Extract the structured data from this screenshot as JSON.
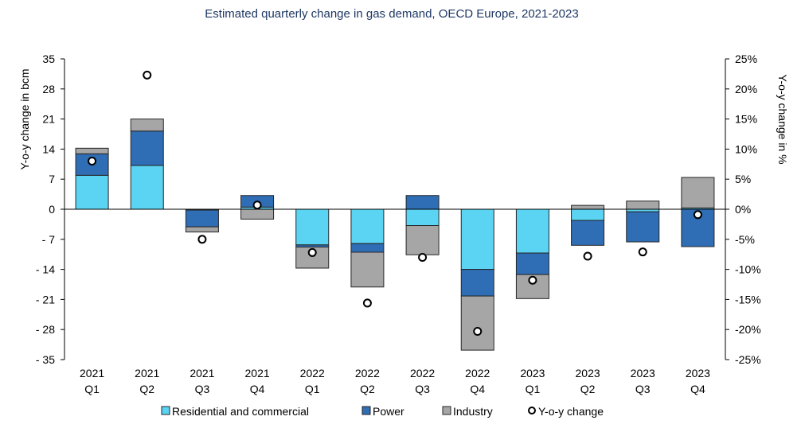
{
  "chart_data": {
    "type": "bar",
    "stacked": true,
    "title": "Estimated quarterly change in gas demand, OECD Europe, 2021-2023",
    "ylabel": "Y-o-y change in bcm",
    "y2label": "Y-o-y change in %",
    "ylim": [
      -35,
      35
    ],
    "y2lim": [
      -25,
      25
    ],
    "yticks": [
      "35",
      "28",
      "21",
      "14",
      "7",
      "0",
      "- 7",
      "- 14",
      "- 21",
      "- 28",
      "- 35"
    ],
    "y2ticks": [
      "25%",
      "20%",
      "15%",
      "10%",
      "5%",
      "0%",
      "-5%",
      "-10%",
      "-15%",
      "-20%",
      "-25%"
    ],
    "categories": [
      [
        "2021",
        "Q1"
      ],
      [
        "2021",
        "Q2"
      ],
      [
        "2021",
        "Q3"
      ],
      [
        "2021",
        "Q4"
      ],
      [
        "2022",
        "Q1"
      ],
      [
        "2022",
        "Q2"
      ],
      [
        "2022",
        "Q3"
      ],
      [
        "2022",
        "Q4"
      ],
      [
        "2023",
        "Q1"
      ],
      [
        "2023",
        "Q2"
      ],
      [
        "2023",
        "Q3"
      ],
      [
        "2023",
        "Q4"
      ]
    ],
    "series": [
      {
        "name": "Residential and commercial",
        "color": "#5bd3f2",
        "values": [
          7.9,
          10.2,
          -0.2,
          0.5,
          -8.3,
          -8.0,
          -3.8,
          -14.0,
          -10.2,
          -2.6,
          -0.6,
          0.3
        ]
      },
      {
        "name": "Power",
        "color": "#2f6db5",
        "values": [
          5.0,
          8.0,
          -3.9,
          2.7,
          -0.5,
          -2.0,
          3.2,
          -6.2,
          -5.0,
          -5.8,
          -7.0,
          -8.7
        ]
      },
      {
        "name": "Industry",
        "color": "#a6a6a6",
        "values": [
          1.3,
          2.8,
          -1.2,
          -2.3,
          -4.9,
          -8.1,
          -6.8,
          -12.6,
          -5.6,
          0.9,
          1.9,
          7.1
        ]
      }
    ],
    "yoy_series": {
      "name": "Y-o-y change",
      "axis": "right",
      "values": [
        8.0,
        22.3,
        -5.0,
        0.7,
        -7.2,
        -15.6,
        -8.0,
        -20.3,
        -11.8,
        -7.8,
        -7.1,
        -0.9
      ]
    },
    "legend_position": "bottom",
    "grid": false
  }
}
